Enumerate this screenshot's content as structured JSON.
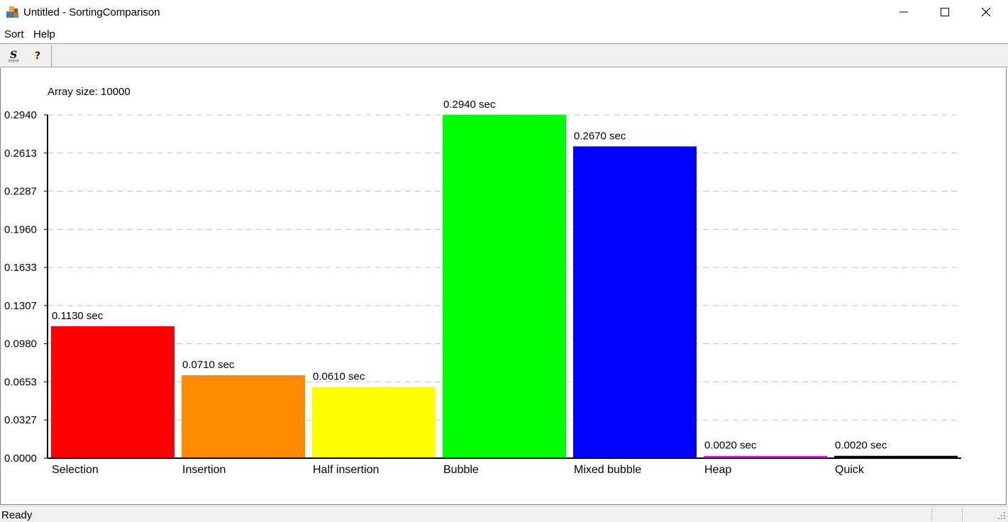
{
  "window": {
    "title": "Untitled - SortingComparison"
  },
  "menu": {
    "items": [
      "Sort",
      "Help"
    ]
  },
  "toolbar": {
    "buttons": [
      {
        "icon": "sort-icon"
      },
      {
        "icon": "help-icon"
      }
    ]
  },
  "status": {
    "text": "Ready"
  },
  "chart_data": {
    "type": "bar",
    "title": "Array size: 10000",
    "categories": [
      "Selection",
      "Insertion",
      "Half insertion",
      "Bubble",
      "Mixed bubble",
      "Heap",
      "Quick"
    ],
    "values": [
      0.113,
      0.071,
      0.061,
      0.294,
      0.267,
      0.002,
      0.002
    ],
    "value_labels": [
      "0.1130 sec",
      "0.0710 sec",
      "0.0610 sec",
      "0.2940 sec",
      "0.2670 sec",
      "0.0020 sec",
      "0.0020 sec"
    ],
    "colors": [
      "#ff0000",
      "#ff8c00",
      "#ffff00",
      "#00ff00",
      "#0000ff",
      "#ff00ff",
      "#000000"
    ],
    "yticks": [
      "0.0000",
      "0.0327",
      "0.0653",
      "0.0980",
      "0.1307",
      "0.1633",
      "0.1960",
      "0.2287",
      "0.2613",
      "0.2940"
    ],
    "ylim": [
      0,
      0.294
    ],
    "grid": true,
    "legend": "none"
  }
}
